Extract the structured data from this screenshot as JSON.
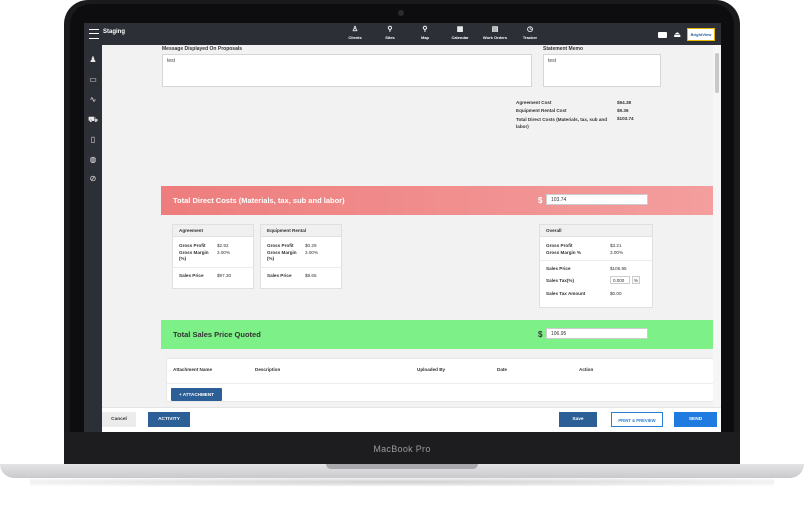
{
  "device": {
    "label": "MacBook Pro"
  },
  "app": {
    "title": "Staging",
    "brand": "BrightView"
  },
  "nav": [
    {
      "label": "Clients",
      "icon": "user-icon",
      "glyph": "♙"
    },
    {
      "label": "Sites",
      "icon": "site-icon",
      "glyph": "⚲"
    },
    {
      "label": "Map",
      "icon": "map-pin-icon",
      "glyph": "⚲"
    },
    {
      "label": "Calendar",
      "icon": "calendar-icon",
      "glyph": "▦"
    },
    {
      "label": "Work Orders",
      "icon": "clipboard-icon",
      "glyph": "▤"
    },
    {
      "label": "Tracker",
      "icon": "stopwatch-icon",
      "glyph": "◷"
    }
  ],
  "sidebar": [
    {
      "icon": "users-icon",
      "glyph": "♟"
    },
    {
      "icon": "card-icon",
      "glyph": "▭"
    },
    {
      "icon": "pulse-icon",
      "glyph": "∿"
    },
    {
      "icon": "truck-icon",
      "glyph": "⛟"
    },
    {
      "icon": "document-icon",
      "glyph": "▯"
    },
    {
      "icon": "palette-icon",
      "glyph": "◍"
    },
    {
      "icon": "no-sign-icon",
      "glyph": "⊘"
    }
  ],
  "proposal": {
    "message_label": "Message Displayed On Proposals",
    "message_value": "test",
    "memo_label": "Statement Memo",
    "memo_value": "test"
  },
  "costs_summary": [
    {
      "label": "Agreement Cost",
      "value": "$94.38"
    },
    {
      "label": "Equipment Rental Cost",
      "value": "$9.36"
    },
    {
      "label": "Total Direct Costs (Materials, tax, sub and labor)",
      "value": "$103.74"
    }
  ],
  "direct_costs": {
    "title": "Total Direct Costs (Materials, tax, sub and labor)",
    "currency": "$",
    "value": "103.74"
  },
  "agreement_card": {
    "title": "Agreement",
    "gross_profit_label": "Gross Profit",
    "gross_profit": "$2.92",
    "gross_margin_label": "Gross Margin (%)",
    "gross_margin": "3.00%",
    "sales_price_label": "Sales Price",
    "sales_price": "$97.30"
  },
  "equipment_card": {
    "title": "Equipment Rental",
    "gross_profit_label": "Gross Profit",
    "gross_profit": "$0.29",
    "gross_margin_label": "Gross Margin (%)",
    "gross_margin": "3.00%",
    "sales_price_label": "Sales Price",
    "sales_price": "$9.65"
  },
  "overall_card": {
    "title": "Overall",
    "gross_profit_label": "Gross Profit",
    "gross_profit": "$3.21",
    "gross_margin_label": "Gross Margin %",
    "gross_margin": "3.00%",
    "sales_price_label": "Sales Price",
    "sales_price": "$106.95",
    "sales_tax_label": "Sales Tax(%)",
    "sales_tax": "0.000",
    "pct": "%",
    "sales_tax_amount_label": "Sales Tax Amount",
    "sales_tax_amount": "$0.00"
  },
  "sales_price": {
    "title": "Total Sales Price Quoted",
    "currency": "$",
    "value": "106.95"
  },
  "attachments": {
    "columns": [
      "Attachment Name",
      "Description",
      "Uploaded By",
      "Date",
      "Action"
    ],
    "add_button": "+ ATTACHMENT"
  },
  "footer": {
    "cancel": "Cancel",
    "activity": "ACTIVITY",
    "save": "Save",
    "print": "PRINT & PREVIEW",
    "send": "SEND"
  },
  "colors": {
    "primary": "#2b5f95",
    "send": "#1f7be0",
    "banner_red": "#ee7d7d",
    "banner_green": "#7ef088",
    "topbar": "#2c2f36"
  }
}
